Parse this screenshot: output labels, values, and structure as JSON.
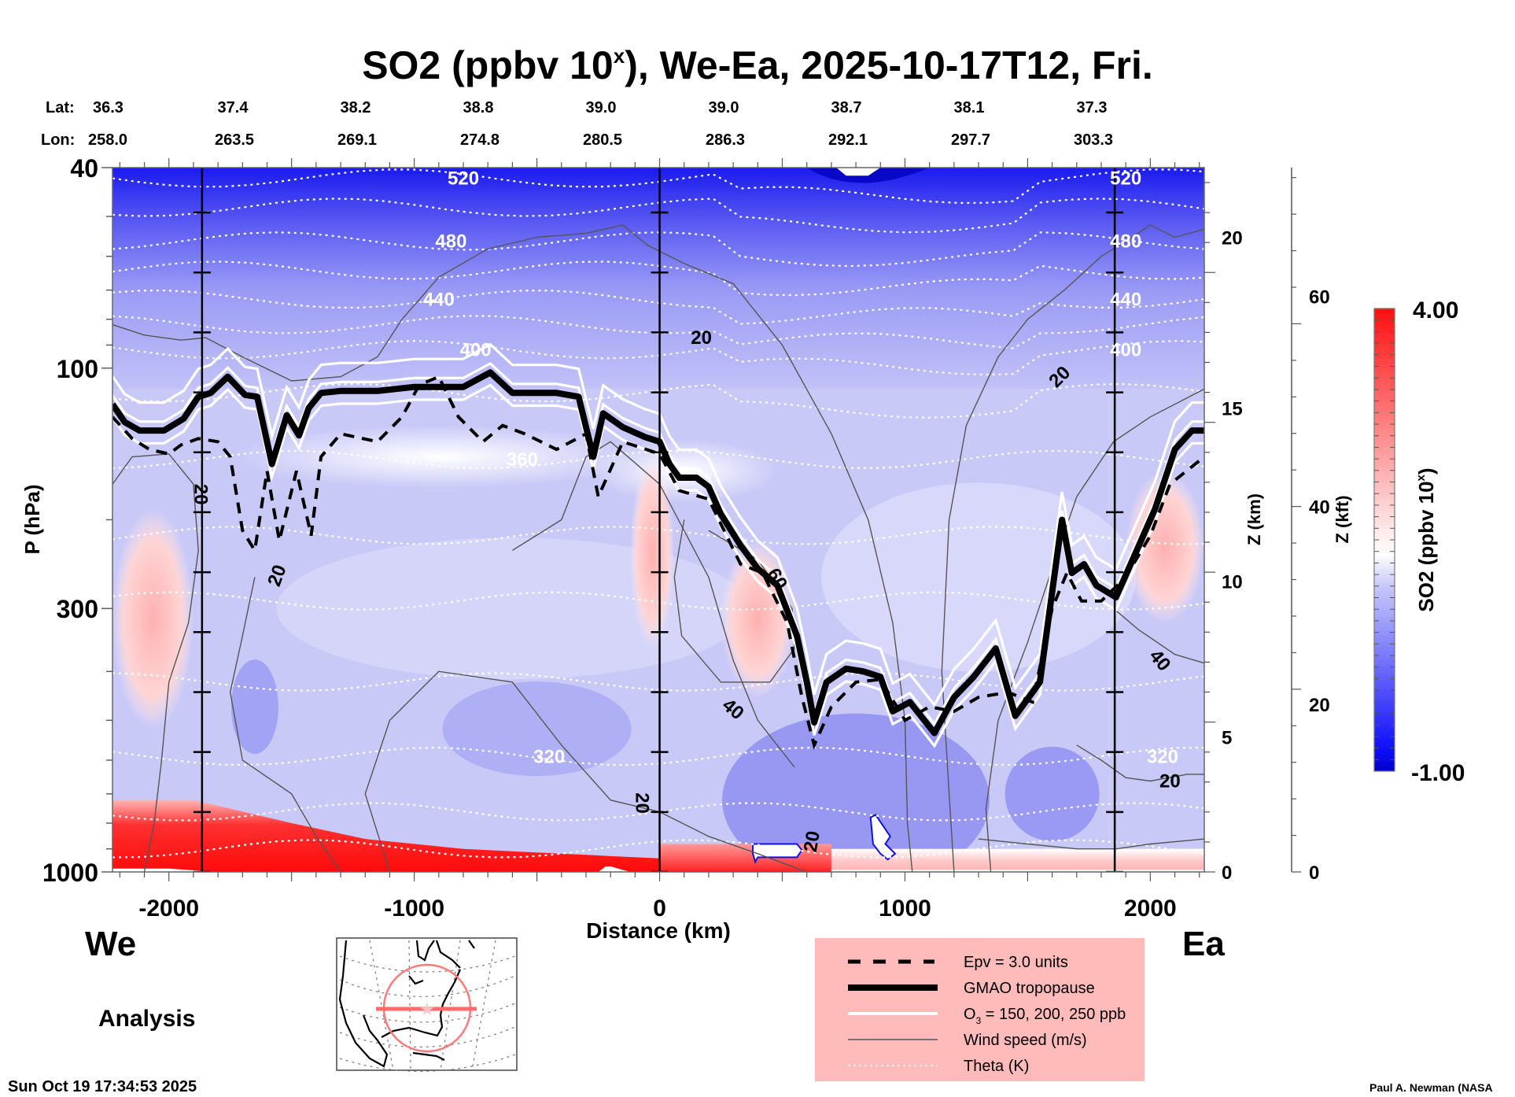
{
  "chart_data": {
    "type": "heatmap",
    "title": "SO2 (ppbv 10",
    "title_superscript": "x",
    "title_suffix": "), We-Ea, 2025-10-17T12, Fri.",
    "xlabel": "Distance (km)",
    "ylabel": "P (hPa)",
    "right_axis_1_label": "Z (km)",
    "right_axis_2_label": "Z (kft)",
    "colorbar_label": "SO2 (ppbv 10",
    "colorbar_label_superscript": "x",
    "colorbar_label_suffix": ")",
    "colorbar_range": [
      -1.0,
      4.0
    ],
    "colorbar_min_label": "-1.00",
    "colorbar_max_label": "4.00",
    "colorbar_colors": {
      "low": "#0000d8",
      "mid": "#ffffff",
      "high": "#ff0000"
    },
    "xlim": [
      -2230,
      2220
    ],
    "ylim_hpa": [
      1000,
      40
    ],
    "y_scale": "log",
    "x_ticks": [
      -2000,
      -1000,
      0,
      1000,
      2000
    ],
    "x_tick_labels": [
      "-2000",
      "-1000",
      "0",
      "1000",
      "2000"
    ],
    "y_ticks": [
      40,
      100,
      300,
      1000
    ],
    "y_tick_labels": [
      "40",
      "100",
      "300",
      "1000"
    ],
    "z_km_ticks": [
      {
        "label": "0",
        "hpa": 1000
      },
      {
        "label": "5",
        "hpa": 540
      },
      {
        "label": "10",
        "hpa": 265
      },
      {
        "label": "15",
        "hpa": 120
      },
      {
        "label": "20",
        "hpa": 55
      }
    ],
    "z_kft_ticks": [
      {
        "label": "0",
        "hpa": 1000
      },
      {
        "label": "20",
        "hpa": 465
      },
      {
        "label": "40",
        "hpa": 188
      },
      {
        "label": "60",
        "hpa": 72
      }
    ],
    "lat_lon_header": {
      "lat_label": "Lat:",
      "lon_label": "Lon:",
      "lat": [
        "36.3",
        "37.4",
        "38.2",
        "38.8",
        "39.0",
        "39.0",
        "38.7",
        "38.1",
        "37.3"
      ],
      "lon": [
        "258.0",
        "263.5",
        "269.1",
        "274.8",
        "280.5",
        "286.3",
        "292.1",
        "297.7",
        "303.3"
      ]
    },
    "vertical_markers_km": [
      -1865,
      0,
      1855
    ],
    "tropopause_gmao": [
      [
        -2230,
        118
      ],
      [
        -2180,
        128
      ],
      [
        -2120,
        133
      ],
      [
        -2020,
        133
      ],
      [
        -1940,
        126
      ],
      [
        -1880,
        114
      ],
      [
        -1830,
        112
      ],
      [
        -1760,
        104
      ],
      [
        -1690,
        113
      ],
      [
        -1640,
        114
      ],
      [
        -1580,
        155
      ],
      [
        -1520,
        124
      ],
      [
        -1470,
        136
      ],
      [
        -1430,
        120
      ],
      [
        -1380,
        112
      ],
      [
        -1300,
        111
      ],
      [
        -1150,
        111
      ],
      [
        -1000,
        109
      ],
      [
        -800,
        109
      ],
      [
        -690,
        102
      ],
      [
        -600,
        112
      ],
      [
        -420,
        112
      ],
      [
        -330,
        114
      ],
      [
        -270,
        150
      ],
      [
        -230,
        123
      ],
      [
        -150,
        131
      ],
      [
        -60,
        137
      ],
      [
        0,
        140
      ],
      [
        40,
        155
      ],
      [
        80,
        165
      ],
      [
        150,
        165
      ],
      [
        200,
        172
      ],
      [
        250,
        195
      ],
      [
        330,
        225
      ],
      [
        400,
        250
      ],
      [
        480,
        270
      ],
      [
        560,
        340
      ],
      [
        600,
        420
      ],
      [
        630,
        505
      ],
      [
        680,
        420
      ],
      [
        760,
        395
      ],
      [
        830,
        400
      ],
      [
        900,
        410
      ],
      [
        950,
        480
      ],
      [
        1020,
        460
      ],
      [
        1120,
        530
      ],
      [
        1200,
        450
      ],
      [
        1280,
        410
      ],
      [
        1370,
        360
      ],
      [
        1450,
        490
      ],
      [
        1550,
        420
      ],
      [
        1640,
        200
      ],
      [
        1680,
        255
      ],
      [
        1730,
        245
      ],
      [
        1780,
        270
      ],
      [
        1860,
        285
      ],
      [
        1920,
        245
      ],
      [
        2020,
        190
      ],
      [
        2100,
        145
      ],
      [
        2170,
        133
      ],
      [
        2220,
        133
      ]
    ],
    "epv_3_units": [
      [
        -2230,
        125
      ],
      [
        -2150,
        138
      ],
      [
        -2080,
        145
      ],
      [
        -2000,
        148
      ],
      [
        -1950,
        142
      ],
      [
        -1880,
        138
      ],
      [
        -1800,
        140
      ],
      [
        -1750,
        150
      ],
      [
        -1700,
        210
      ],
      [
        -1650,
        230
      ],
      [
        -1600,
        160
      ],
      [
        -1550,
        220
      ],
      [
        -1480,
        160
      ],
      [
        -1420,
        215
      ],
      [
        -1380,
        150
      ],
      [
        -1300,
        135
      ],
      [
        -1150,
        140
      ],
      [
        -1050,
        125
      ],
      [
        -980,
        108
      ],
      [
        -900,
        104
      ],
      [
        -820,
        125
      ],
      [
        -720,
        140
      ],
      [
        -640,
        130
      ],
      [
        -550,
        135
      ],
      [
        -420,
        145
      ],
      [
        -300,
        135
      ],
      [
        -250,
        180
      ],
      [
        -150,
        140
      ],
      [
        0,
        148
      ],
      [
        80,
        175
      ],
      [
        200,
        182
      ],
      [
        330,
        245
      ],
      [
        420,
        255
      ],
      [
        520,
        320
      ],
      [
        580,
        450
      ],
      [
        630,
        560
      ],
      [
        700,
        470
      ],
      [
        800,
        420
      ],
      [
        900,
        415
      ],
      [
        1000,
        500
      ],
      [
        1100,
        470
      ],
      [
        1200,
        480
      ],
      [
        1300,
        450
      ],
      [
        1420,
        440
      ],
      [
        1520,
        460
      ],
      [
        1600,
        300
      ],
      [
        1660,
        255
      ],
      [
        1720,
        290
      ],
      [
        1800,
        290
      ],
      [
        1900,
        260
      ],
      [
        2000,
        215
      ],
      [
        2080,
        170
      ],
      [
        2220,
        150
      ]
    ],
    "ozone_contours_ppb": [
      150,
      200,
      250
    ],
    "wind_speed_labels": [
      {
        "text": "20",
        "x": -1870,
        "p": 178,
        "rotate": 90
      },
      {
        "text": "20",
        "x": -1560,
        "p": 258,
        "rotate": -70
      },
      {
        "text": "20",
        "x": 170,
        "p": 87
      },
      {
        "text": "20",
        "x": 1630,
        "p": 104,
        "rotate": -45
      },
      {
        "text": "60",
        "x": 480,
        "p": 262,
        "rotate": 60
      },
      {
        "text": "40",
        "x": 300,
        "p": 475,
        "rotate": 40
      },
      {
        "text": "40",
        "x": 2040,
        "p": 380,
        "rotate": 50
      },
      {
        "text": "20",
        "x": -70,
        "p": 730,
        "rotate": 90
      },
      {
        "text": "20",
        "x": 620,
        "p": 870,
        "rotate": -80
      },
      {
        "text": "20",
        "x": 2080,
        "p": 660
      }
    ],
    "theta_levels_K": [
      {
        "value": "520",
        "p": 42
      },
      {
        "value": "480",
        "p": 56
      },
      {
        "value": "440",
        "p": 73
      },
      {
        "value": "400",
        "p": 92
      },
      {
        "value": "360",
        "p": 152
      },
      {
        "value": "320",
        "p": 590
      }
    ],
    "theta_lines_p": [
      42,
      48,
      56,
      64,
      73,
      82,
      92,
      112,
      152,
      215,
      290,
      420,
      590,
      760,
      900
    ],
    "so2_regions": [
      {
        "name": "stratosphere-deep-blue",
        "value": -0.7,
        "p_top": 40,
        "p_bottom": 60
      },
      {
        "name": "upper-blue",
        "value": -0.4,
        "p_top": 60,
        "p_bottom": 100
      },
      {
        "name": "west-lower-red",
        "value": 2.0,
        "x_range": [
          -2230,
          -1900
        ],
        "p_range": [
          190,
          520
        ]
      },
      {
        "name": "surface-red-west",
        "value": 4.0,
        "x_range": [
          -2230,
          -200
        ],
        "p_range": [
          760,
          1000
        ]
      },
      {
        "name": "surface-red-center",
        "value": 3.0,
        "x_range": [
          0,
          700
        ],
        "p_range": [
          880,
          1000
        ]
      },
      {
        "name": "surface-pink-east",
        "value": 1.2,
        "x_range": [
          700,
          2220
        ],
        "p_range": [
          900,
          1000
        ]
      },
      {
        "name": "center-pink-column",
        "value": 1.0,
        "x_range": [
          -120,
          60
        ],
        "p_range": [
          150,
          360
        ]
      },
      {
        "name": "east-pink-core",
        "value": 0.6,
        "x_range": [
          250,
          550
        ],
        "p_range": [
          220,
          450
        ]
      },
      {
        "name": "far-east-pink",
        "value": 1.3,
        "x_range": [
          1900,
          2220
        ],
        "p_range": [
          160,
          320
        ]
      }
    ]
  },
  "labels": {
    "we": "We",
    "ea": "Ea",
    "analysis": "Analysis",
    "timestamp": "Sun Oct 19 17:34:53 2025",
    "credit": "Paul A. Newman (NASA"
  },
  "legend": {
    "items": [
      {
        "label": "Epv = 3.0 units",
        "style": "dashed"
      },
      {
        "label": "GMAO tropopause",
        "style": "thick"
      },
      {
        "label": "O",
        "sub": "3",
        "suffix": " = 150, 200, 250 ppb",
        "style": "white"
      },
      {
        "label": "Wind speed (m/s)",
        "style": "thin"
      },
      {
        "label": "Theta (K)",
        "style": "dotted"
      }
    ],
    "background": "#ffbaba"
  },
  "map": {
    "description": "North America locator map with cross-section line",
    "line_color": "#ff6a6a"
  }
}
